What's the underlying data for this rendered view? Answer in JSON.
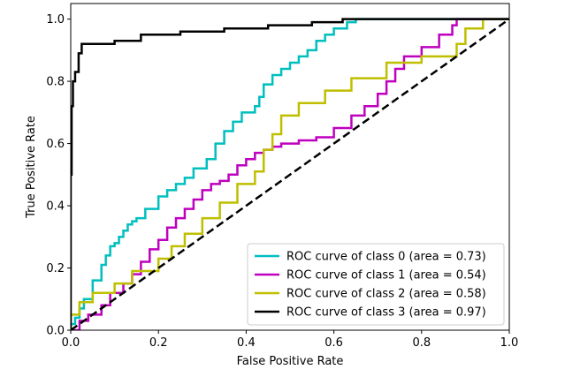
{
  "chart_data": {
    "type": "line",
    "title": "",
    "xlabel": "False Positive Rate",
    "ylabel": "True Positive Rate",
    "xlim": [
      0.0,
      1.0
    ],
    "ylim": [
      0.0,
      1.05
    ],
    "x_ticks": [
      0.0,
      0.2,
      0.4,
      0.6,
      0.8,
      1.0
    ],
    "y_ticks": [
      0.0,
      0.2,
      0.4,
      0.6,
      0.8,
      1.0
    ],
    "x_tick_labels": [
      "0.0",
      "0.2",
      "0.4",
      "0.6",
      "0.8",
      "1.0"
    ],
    "y_tick_labels": [
      "0.0",
      "0.2",
      "0.4",
      "0.6",
      "0.8",
      "1.0"
    ],
    "grid": false,
    "legend_position": "lower-right",
    "series": [
      {
        "name": "ROC curve of class 0 (area = 0.73)",
        "color": "#00bfbf",
        "style": "step",
        "x": [
          0.0,
          0.0,
          0.01,
          0.01,
          0.02,
          0.02,
          0.03,
          0.03,
          0.05,
          0.05,
          0.07,
          0.07,
          0.08,
          0.08,
          0.09,
          0.09,
          0.1,
          0.1,
          0.11,
          0.11,
          0.12,
          0.12,
          0.13,
          0.13,
          0.14,
          0.14,
          0.15,
          0.15,
          0.17,
          0.17,
          0.2,
          0.2,
          0.22,
          0.22,
          0.24,
          0.24,
          0.26,
          0.26,
          0.28,
          0.28,
          0.31,
          0.31,
          0.33,
          0.33,
          0.35,
          0.35,
          0.37,
          0.37,
          0.39,
          0.39,
          0.42,
          0.42,
          0.43,
          0.43,
          0.44,
          0.44,
          0.46,
          0.46,
          0.48,
          0.48,
          0.5,
          0.5,
          0.52,
          0.52,
          0.54,
          0.54,
          0.56,
          0.56,
          0.58,
          0.58,
          0.6,
          0.6,
          0.63,
          0.63,
          0.65,
          0.65,
          1.0
        ],
        "y": [
          0.0,
          0.02,
          0.02,
          0.04,
          0.04,
          0.07,
          0.07,
          0.1,
          0.1,
          0.16,
          0.16,
          0.21,
          0.21,
          0.24,
          0.24,
          0.27,
          0.27,
          0.28,
          0.28,
          0.3,
          0.3,
          0.32,
          0.32,
          0.34,
          0.34,
          0.35,
          0.35,
          0.36,
          0.36,
          0.39,
          0.39,
          0.43,
          0.43,
          0.45,
          0.45,
          0.47,
          0.47,
          0.49,
          0.49,
          0.52,
          0.52,
          0.55,
          0.55,
          0.6,
          0.6,
          0.64,
          0.64,
          0.67,
          0.67,
          0.7,
          0.7,
          0.72,
          0.72,
          0.75,
          0.75,
          0.79,
          0.79,
          0.82,
          0.82,
          0.84,
          0.84,
          0.86,
          0.86,
          0.88,
          0.88,
          0.9,
          0.9,
          0.93,
          0.93,
          0.95,
          0.95,
          0.97,
          0.97,
          0.99,
          0.99,
          1.0,
          1.0
        ]
      },
      {
        "name": "ROC curve of class 1 (area = 0.54)",
        "color": "#bf00bf",
        "style": "step",
        "x": [
          0.0,
          0.0,
          0.02,
          0.02,
          0.04,
          0.04,
          0.07,
          0.07,
          0.09,
          0.09,
          0.12,
          0.12,
          0.14,
          0.14,
          0.16,
          0.16,
          0.18,
          0.18,
          0.2,
          0.2,
          0.22,
          0.22,
          0.24,
          0.24,
          0.26,
          0.26,
          0.28,
          0.28,
          0.3,
          0.3,
          0.32,
          0.32,
          0.34,
          0.34,
          0.36,
          0.36,
          0.38,
          0.38,
          0.4,
          0.4,
          0.42,
          0.42,
          0.44,
          0.44,
          0.46,
          0.46,
          0.48,
          0.48,
          0.52,
          0.52,
          0.56,
          0.56,
          0.6,
          0.6,
          0.64,
          0.64,
          0.67,
          0.67,
          0.7,
          0.7,
          0.72,
          0.72,
          0.74,
          0.74,
          0.76,
          0.76,
          0.8,
          0.8,
          0.84,
          0.84,
          0.87,
          0.87,
          0.88,
          0.88,
          1.0
        ],
        "y": [
          0.0,
          0.0,
          0.0,
          0.03,
          0.03,
          0.05,
          0.05,
          0.08,
          0.08,
          0.12,
          0.12,
          0.15,
          0.15,
          0.18,
          0.18,
          0.22,
          0.22,
          0.26,
          0.26,
          0.29,
          0.29,
          0.33,
          0.33,
          0.36,
          0.36,
          0.39,
          0.39,
          0.42,
          0.42,
          0.45,
          0.45,
          0.47,
          0.47,
          0.48,
          0.48,
          0.5,
          0.5,
          0.53,
          0.53,
          0.55,
          0.55,
          0.57,
          0.57,
          0.58,
          0.58,
          0.59,
          0.59,
          0.6,
          0.6,
          0.61,
          0.61,
          0.62,
          0.62,
          0.65,
          0.65,
          0.69,
          0.69,
          0.72,
          0.72,
          0.76,
          0.76,
          0.8,
          0.8,
          0.84,
          0.84,
          0.88,
          0.88,
          0.91,
          0.91,
          0.95,
          0.95,
          0.98,
          0.98,
          1.0,
          1.0
        ]
      },
      {
        "name": "ROC curve of class 2 (area = 0.58)",
        "color": "#bfbf00",
        "style": "step",
        "x": [
          0.0,
          0.0,
          0.02,
          0.02,
          0.05,
          0.05,
          0.1,
          0.1,
          0.14,
          0.14,
          0.2,
          0.2,
          0.23,
          0.23,
          0.26,
          0.26,
          0.3,
          0.3,
          0.34,
          0.34,
          0.38,
          0.38,
          0.42,
          0.42,
          0.44,
          0.44,
          0.46,
          0.46,
          0.48,
          0.48,
          0.52,
          0.52,
          0.58,
          0.58,
          0.64,
          0.64,
          0.72,
          0.72,
          0.8,
          0.8,
          0.88,
          0.88,
          0.9,
          0.9,
          0.94,
          0.94,
          1.0
        ],
        "y": [
          0.0,
          0.05,
          0.05,
          0.09,
          0.09,
          0.12,
          0.12,
          0.15,
          0.15,
          0.19,
          0.19,
          0.23,
          0.23,
          0.27,
          0.27,
          0.31,
          0.31,
          0.36,
          0.36,
          0.41,
          0.41,
          0.47,
          0.47,
          0.51,
          0.51,
          0.58,
          0.58,
          0.63,
          0.63,
          0.69,
          0.69,
          0.73,
          0.73,
          0.77,
          0.77,
          0.81,
          0.81,
          0.86,
          0.86,
          0.88,
          0.88,
          0.92,
          0.92,
          0.97,
          0.97,
          1.0,
          1.0
        ]
      },
      {
        "name": "ROC curve of class 3 (area = 0.97)",
        "color": "#000000",
        "style": "step",
        "x": [
          0.0,
          0.0,
          0.002,
          0.002,
          0.005,
          0.005,
          0.01,
          0.01,
          0.018,
          0.018,
          0.025,
          0.025,
          0.1,
          0.1,
          0.16,
          0.16,
          0.25,
          0.25,
          0.35,
          0.35,
          0.45,
          0.45,
          0.55,
          0.55,
          0.62,
          0.62,
          0.65,
          0.65,
          1.0
        ],
        "y": [
          0.0,
          0.5,
          0.5,
          0.72,
          0.72,
          0.8,
          0.8,
          0.83,
          0.83,
          0.89,
          0.89,
          0.92,
          0.92,
          0.93,
          0.93,
          0.95,
          0.95,
          0.96,
          0.96,
          0.97,
          0.97,
          0.98,
          0.98,
          0.99,
          0.99,
          1.0,
          1.0,
          1.0,
          1.0
        ]
      },
      {
        "name": "",
        "color": "#000000",
        "style": "dashed",
        "x": [
          0.0,
          1.0
        ],
        "y": [
          0.0,
          1.0
        ]
      }
    ]
  }
}
